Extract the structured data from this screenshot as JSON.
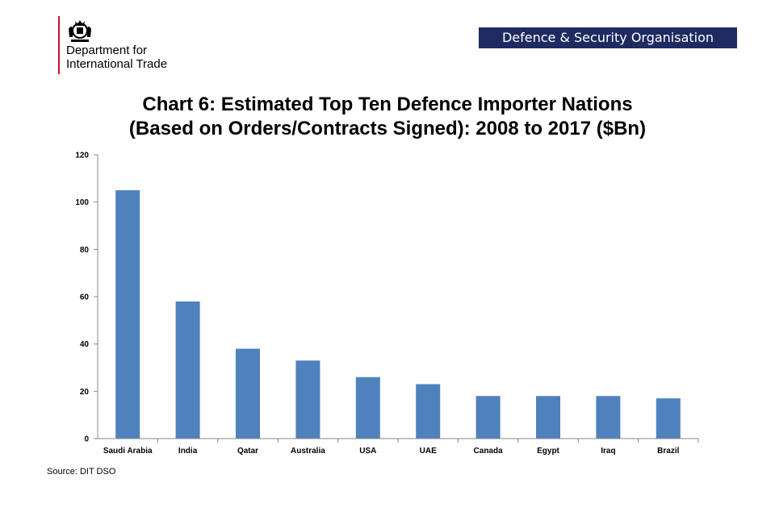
{
  "header": {
    "dept_line1": "Department for",
    "dept_line2": "International Trade",
    "org_badge": "Defence & Security Organisation",
    "brand_color": "#1f2a60",
    "accent_color": "#c8102e"
  },
  "chart_data": {
    "type": "bar",
    "title_line1": "Chart 6: Estimated Top Ten Defence Importer Nations",
    "title_line2": "(Based on Orders/Contracts Signed): 2008 to 2017 ($Bn)",
    "categories": [
      "Saudi Arabia",
      "India",
      "Qatar",
      "Australia",
      "USA",
      "UAE",
      "Canada",
      "Egypt",
      "Iraq",
      "Brazil"
    ],
    "values": [
      105,
      58,
      38,
      33,
      26,
      23,
      18,
      18,
      18,
      17
    ],
    "ylim": [
      0,
      120
    ],
    "yticks": [
      0,
      20,
      40,
      60,
      80,
      100,
      120
    ],
    "xlabel": "",
    "ylabel": "",
    "bar_color": "#4f81bd",
    "grid": false,
    "legend": "none"
  },
  "footer": {
    "source": "Source: DIT DSO"
  }
}
